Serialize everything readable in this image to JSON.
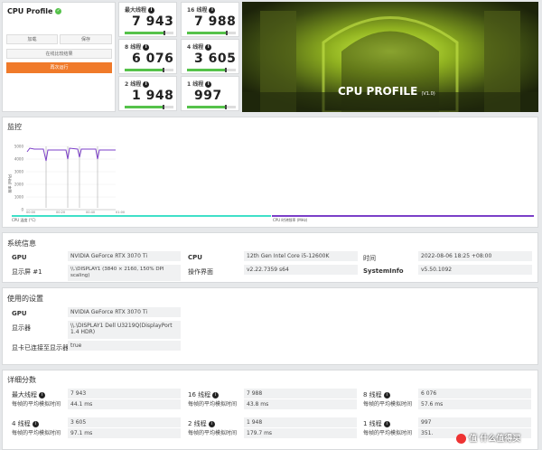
{
  "app": {
    "title": "CPU Profile",
    "verified_icon": "check-circle-icon"
  },
  "left_panel": {
    "button1": "加载",
    "button2": "保存",
    "button3": "在线比较结果",
    "run_button": "再次运行"
  },
  "scores": [
    {
      "label": "最大线程",
      "value": "7 943",
      "bar": 0.82
    },
    {
      "label": "16 线程",
      "value": "7 988",
      "bar": 0.82
    },
    {
      "label": "8 线程",
      "value": "6 076",
      "bar": 0.8
    },
    {
      "label": "4 线程",
      "value": "3 605",
      "bar": 0.8
    },
    {
      "label": "2 线程",
      "value": "1 948",
      "bar": 0.8
    },
    {
      "label": "1 线程",
      "value": "997",
      "bar": 0.8
    }
  ],
  "banner": {
    "title": "CPU PROFILE",
    "version": "(V1.0)"
  },
  "monitor": {
    "title": "监控",
    "y_axis_label": "频率 (MHz)",
    "ticks": [
      "5000",
      "4000",
      "3000",
      "2000",
      "1000",
      "0"
    ],
    "x_ticks": [
      "00:00",
      "00:20",
      "00:40",
      "01:00"
    ],
    "legend_left": "CPU 温度 (°C)",
    "legend_right": "CPU 时钟频率 (MHz)",
    "line_color": "#7b3fc8",
    "temp_color": "#3fe0c8"
  },
  "system_info": {
    "title": "系统信息",
    "rows": [
      {
        "k1": "GPU",
        "v1": "NVIDIA GeForce RTX 3070 Ti",
        "k2": "CPU",
        "v2": "12th Gen Intel Core i5-12600K",
        "k3": "时间",
        "v3": "2022-08-06 18:25 +08:00"
      },
      {
        "k1": "显示屏 #1",
        "v1": "\\\\.\\DISPLAY1 (3840 × 2160, 150% DPI scaling)",
        "k2": "操作界面",
        "v2": "v2.22.7359 s64",
        "k3": "SystemInfo",
        "v3": "v5.50.1092"
      }
    ]
  },
  "settings": {
    "title": "使用的设置",
    "rows": [
      {
        "k": "GPU",
        "v": "NVIDIA GeForce RTX 3070 Ti"
      },
      {
        "k": "显示器",
        "v": "\\\\.\\DISPLAY1 Dell U3219Q(DisplayPort 1.4 HDR)"
      },
      {
        "k": "显卡已连接至显示器",
        "v": "true"
      }
    ]
  },
  "details": {
    "title": "详细分数",
    "sub_label": "每帧的平均模拟时间",
    "items": [
      {
        "label": "最大线程",
        "score": "7 943",
        "time": "44.1 ms"
      },
      {
        "label": "16 线程",
        "score": "7 988",
        "time": "43.8 ms"
      },
      {
        "label": "8 线程",
        "score": "6 076",
        "time": "57.6 ms"
      },
      {
        "label": "4 线程",
        "score": "3 605",
        "time": "97.1 ms"
      },
      {
        "label": "2 线程",
        "score": "1 948",
        "time": "179.7 ms"
      },
      {
        "label": "1 线程",
        "score": "997",
        "time": "351."
      }
    ]
  },
  "watermark": "值 什么值得买"
}
